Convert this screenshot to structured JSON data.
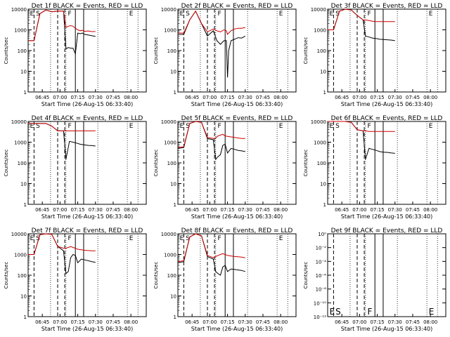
{
  "colors": {
    "events": "#000000",
    "lld": "#cc0000"
  },
  "chart_data": [
    {
      "type": "line",
      "title": "Det 1f  BLACK = Events, RED = LLD",
      "xlabel": "Start Time (26-Aug-15 06:33:40)",
      "ylabel": "Counts/sec",
      "x_ticks": [
        "06:45",
        "07:00",
        "07:15",
        "07:30",
        "07:45",
        "08:00"
      ],
      "y_scale": "log",
      "y_ticks": [
        "1",
        "10",
        "100",
        "1000",
        "10000"
      ],
      "ylim": [
        1,
        10000
      ],
      "phase_labels": [
        "E",
        "S",
        "F",
        "E"
      ],
      "series": [
        {
          "color": "events",
          "x": [
            "06:33",
            "06:38",
            "06:43",
            "06:48",
            "06:53",
            "06:58",
            "07:03",
            "07:05",
            "07:07",
            "07:09",
            "07:11",
            "07:13",
            "07:15",
            "07:17",
            "07:19",
            "07:21",
            "07:24",
            "07:27",
            "07:30"
          ],
          "y": [
            300,
            300,
            6000,
            9000,
            7500,
            8000,
            8000,
            120,
            140,
            130,
            130,
            70,
            700,
            650,
            700,
            600,
            560,
            520,
            480
          ]
        },
        {
          "color": "lld",
          "x": [
            "06:33",
            "06:38",
            "06:43",
            "06:48",
            "06:53",
            "06:58",
            "07:03",
            "07:05",
            "07:07",
            "07:09",
            "07:11",
            "07:13",
            "07:15",
            "07:17",
            "07:19",
            "07:21",
            "07:24",
            "07:27",
            "07:30"
          ],
          "y": [
            300,
            300,
            6000,
            9000,
            7500,
            8000,
            8000,
            1300,
            1500,
            1600,
            1500,
            1200,
            1000,
            900,
            950,
            850,
            880,
            820,
            830
          ]
        }
      ]
    },
    {
      "type": "line",
      "title": "Det 2f  BLACK = Events, RED = LLD",
      "xlabel": "Start Time (26-Aug-15 06:33:40)",
      "ylabel": "Counts/sec",
      "x_ticks": [
        "06:45",
        "07:00",
        "07:15",
        "07:30",
        "07:45",
        "08:00"
      ],
      "y_scale": "log",
      "y_ticks": [
        "1",
        "10",
        "100",
        "1000",
        "10000"
      ],
      "ylim": [
        1,
        10000
      ],
      "phase_labels": [
        "E",
        "S",
        "F",
        "E"
      ],
      "series": [
        {
          "color": "events",
          "x": [
            "06:33",
            "06:38",
            "06:43",
            "06:48",
            "06:53",
            "06:58",
            "07:03",
            "07:06",
            "07:09",
            "07:12",
            "07:14",
            "07:15",
            "07:16",
            "07:18",
            "07:21",
            "07:24",
            "07:27",
            "07:30"
          ],
          "y": [
            600,
            600,
            3000,
            8000,
            2000,
            500,
            900,
            300,
            200,
            300,
            300,
            5,
            100,
            300,
            350,
            420,
            400,
            500
          ]
        },
        {
          "color": "lld",
          "x": [
            "06:33",
            "06:38",
            "06:43",
            "06:48",
            "06:53",
            "06:58",
            "07:03",
            "07:06",
            "07:09",
            "07:12",
            "07:14",
            "07:15",
            "07:16",
            "07:18",
            "07:21",
            "07:24",
            "07:27",
            "07:30"
          ],
          "y": [
            700,
            700,
            3000,
            8000,
            2000,
            800,
            1100,
            900,
            800,
            1000,
            900,
            600,
            700,
            900,
            1100,
            1200,
            1200,
            1300
          ]
        }
      ]
    },
    {
      "type": "line",
      "title": "Det 3f  BLACK = Events, RED = LLD",
      "xlabel": "Start Time (26-Aug-15 06:33:40)",
      "ylabel": "Counts/sec",
      "x_ticks": [
        "06:45",
        "07:00",
        "07:15",
        "07:30",
        "07:45",
        "08:00"
      ],
      "y_scale": "log",
      "y_ticks": [
        "1",
        "10",
        "100",
        "1000",
        "10000"
      ],
      "ylim": [
        1,
        10000
      ],
      "phase_labels": [
        "E",
        "S",
        "F",
        "E"
      ],
      "series": [
        {
          "color": "events",
          "x": [
            "06:33",
            "06:38",
            "06:43",
            "06:48",
            "06:53",
            "06:58",
            "07:03",
            "07:05",
            "07:08",
            "07:11",
            "07:14",
            "07:17",
            "07:20",
            "07:24",
            "07:27",
            "07:30"
          ],
          "y": [
            1000,
            1000,
            8000,
            10000,
            9000,
            5000,
            3000,
            500,
            450,
            400,
            380,
            350,
            340,
            330,
            320,
            300
          ]
        },
        {
          "color": "lld",
          "x": [
            "06:33",
            "06:38",
            "06:43",
            "06:48",
            "06:53",
            "06:58",
            "07:03",
            "07:05",
            "07:08",
            "07:11",
            "07:14",
            "07:17",
            "07:20",
            "07:24",
            "07:27",
            "07:30"
          ],
          "y": [
            1000,
            1000,
            8000,
            10000,
            9000,
            5000,
            3000,
            3000,
            2800,
            2600,
            2500,
            2500,
            2500,
            2500,
            2500,
            2500
          ]
        }
      ]
    },
    {
      "type": "line",
      "title": "Det 4f  BLACK = Events, RED = LLD",
      "xlabel": "Start Time (26-Aug-15 06:33:40)",
      "ylabel": "Counts/sec",
      "x_ticks": [
        "06:45",
        "07:00",
        "07:15",
        "07:30",
        "07:45",
        "08:00"
      ],
      "y_scale": "log",
      "y_ticks": [
        "1",
        "10",
        "100",
        "1000",
        "10000"
      ],
      "ylim": [
        1,
        10000
      ],
      "phase_labels": [
        "E",
        "S",
        "F",
        "E"
      ],
      "series": [
        {
          "color": "events",
          "x": [
            "06:33",
            "06:38",
            "06:43",
            "06:48",
            "06:53",
            "06:58",
            "07:03",
            "07:05",
            "07:08",
            "07:11",
            "07:14",
            "07:17",
            "07:20",
            "07:24",
            "07:27",
            "07:30"
          ],
          "y": [
            8000,
            8000,
            8000,
            8000,
            6000,
            3500,
            3500,
            150,
            1100,
            1000,
            900,
            800,
            750,
            700,
            680,
            650
          ]
        },
        {
          "color": "lld",
          "x": [
            "06:33",
            "06:38",
            "06:43",
            "06:48",
            "06:53",
            "06:58",
            "07:03",
            "07:05",
            "07:08",
            "07:11",
            "07:14",
            "07:17",
            "07:20",
            "07:24",
            "07:27",
            "07:30"
          ],
          "y": [
            8000,
            8000,
            8000,
            8000,
            6000,
            3500,
            3500,
            3500,
            3500,
            3500,
            3500,
            3500,
            3500,
            3500,
            3500,
            3500
          ]
        }
      ]
    },
    {
      "type": "line",
      "title": "Det 5f  BLACK = Events, RED = LLD",
      "xlabel": "Start Time (26-Aug-15 06:33:40)",
      "ylabel": "Counts/sec",
      "x_ticks": [
        "06:45",
        "07:00",
        "07:15",
        "07:30",
        "07:45",
        "08:00"
      ],
      "y_scale": "log",
      "y_ticks": [
        "1",
        "10",
        "100",
        "1000",
        "10000"
      ],
      "ylim": [
        1,
        10000
      ],
      "phase_labels": [
        "E",
        "S",
        "F",
        "E"
      ],
      "series": [
        {
          "color": "events",
          "x": [
            "06:33",
            "06:38",
            "06:43",
            "06:48",
            "06:53",
            "06:58",
            "07:03",
            "07:05",
            "07:07",
            "07:09",
            "07:11",
            "07:13",
            "07:15",
            "07:18",
            "07:21",
            "07:24",
            "07:27",
            "07:30"
          ],
          "y": [
            500,
            550,
            8000,
            10000,
            9000,
            1500,
            1300,
            150,
            200,
            250,
            700,
            800,
            300,
            500,
            450,
            400,
            380,
            350
          ]
        },
        {
          "color": "lld",
          "x": [
            "06:33",
            "06:38",
            "06:43",
            "06:48",
            "06:53",
            "06:58",
            "07:03",
            "07:05",
            "07:07",
            "07:09",
            "07:11",
            "07:13",
            "07:15",
            "07:18",
            "07:21",
            "07:24",
            "07:27",
            "07:30"
          ],
          "y": [
            550,
            600,
            8000,
            10000,
            9000,
            1700,
            1500,
            1600,
            2000,
            2200,
            2400,
            2000,
            1900,
            1800,
            1700,
            1600,
            1500,
            1500
          ]
        }
      ]
    },
    {
      "type": "line",
      "title": "Det 6f  BLACK = Events, RED = LLD",
      "xlabel": "Start Time (26-Aug-15 06:33:40)",
      "ylabel": "Counts/sec",
      "x_ticks": [
        "06:45",
        "07:00",
        "07:15",
        "07:30",
        "07:45",
        "08:00"
      ],
      "y_scale": "log",
      "y_ticks": [
        "1",
        "10",
        "100",
        "1000",
        "10000"
      ],
      "ylim": [
        1,
        10000
      ],
      "phase_labels": [
        "E",
        "S",
        "F",
        "E"
      ],
      "series": [
        {
          "color": "events",
          "x": [
            "06:33",
            "06:38",
            "06:43",
            "06:48",
            "06:53",
            "06:58",
            "07:03",
            "07:05",
            "07:08",
            "07:11",
            "07:14",
            "07:17",
            "07:20",
            "07:24",
            "07:27",
            "07:30"
          ],
          "y": [
            10000,
            10000,
            10000,
            10000,
            9000,
            4000,
            3500,
            150,
            500,
            450,
            400,
            350,
            330,
            320,
            300,
            290
          ]
        },
        {
          "color": "lld",
          "x": [
            "06:33",
            "06:38",
            "06:43",
            "06:48",
            "06:53",
            "06:58",
            "07:03",
            "07:05",
            "07:08",
            "07:11",
            "07:14",
            "07:17",
            "07:20",
            "07:24",
            "07:27",
            "07:30"
          ],
          "y": [
            10000,
            10000,
            10000,
            10000,
            9000,
            4000,
            3500,
            3500,
            3300,
            3300,
            3300,
            3300,
            3300,
            3300,
            3300,
            3300
          ]
        }
      ]
    },
    {
      "type": "line",
      "title": "Det 7f  BLACK = Events, RED = LLD",
      "xlabel": "Start Time (26-Aug-15 06:33:40)",
      "ylabel": "Counts/sec",
      "x_ticks": [
        "06:45",
        "07:00",
        "07:15",
        "07:30",
        "07:45",
        "08:00"
      ],
      "y_scale": "log",
      "y_ticks": [
        "1",
        "10",
        "100",
        "1000",
        "10000"
      ],
      "ylim": [
        1,
        10000
      ],
      "phase_labels": [
        "E",
        "S",
        "F",
        "E"
      ],
      "series": [
        {
          "color": "events",
          "x": [
            "06:33",
            "06:38",
            "06:43",
            "06:48",
            "06:53",
            "06:58",
            "07:03",
            "07:05",
            "07:07",
            "07:09",
            "07:11",
            "07:13",
            "07:15",
            "07:18",
            "07:21",
            "07:24",
            "07:27",
            "07:30"
          ],
          "y": [
            1000,
            1000,
            9000,
            10000,
            9500,
            2500,
            1500,
            120,
            150,
            700,
            1000,
            900,
            400,
            600,
            550,
            500,
            450,
            420
          ]
        },
        {
          "color": "lld",
          "x": [
            "06:33",
            "06:38",
            "06:43",
            "06:48",
            "06:53",
            "06:58",
            "07:03",
            "07:05",
            "07:07",
            "07:09",
            "07:11",
            "07:13",
            "07:15",
            "07:18",
            "07:21",
            "07:24",
            "07:27",
            "07:30"
          ],
          "y": [
            1000,
            1000,
            9000,
            10000,
            9500,
            2500,
            2000,
            2000,
            2200,
            2400,
            2200,
            2000,
            1800,
            1700,
            1600,
            1550,
            1500,
            1500
          ]
        }
      ]
    },
    {
      "type": "line",
      "title": "Det 8f  BLACK = Events, RED = LLD",
      "xlabel": "Start Time (26-Aug-15 06:33:40)",
      "ylabel": "Counts/sec",
      "x_ticks": [
        "06:45",
        "07:00",
        "07:15",
        "07:30",
        "07:45",
        "08:00"
      ],
      "y_scale": "log",
      "y_ticks": [
        "1",
        "10",
        "100",
        "1000",
        "10000"
      ],
      "ylim": [
        1,
        10000
      ],
      "phase_labels": [
        "E",
        "S",
        "F",
        "E"
      ],
      "series": [
        {
          "color": "events",
          "x": [
            "06:33",
            "06:38",
            "06:43",
            "06:48",
            "06:53",
            "06:58",
            "07:03",
            "07:05",
            "07:07",
            "07:09",
            "07:11",
            "07:13",
            "07:15",
            "07:18",
            "07:21",
            "07:24",
            "07:27",
            "07:30"
          ],
          "y": [
            400,
            450,
            7000,
            10000,
            8000,
            800,
            600,
            150,
            120,
            100,
            250,
            300,
            150,
            200,
            190,
            180,
            170,
            150
          ]
        },
        {
          "color": "lld",
          "x": [
            "06:33",
            "06:38",
            "06:43",
            "06:48",
            "06:53",
            "06:58",
            "07:03",
            "07:05",
            "07:07",
            "07:09",
            "07:11",
            "07:13",
            "07:15",
            "07:18",
            "07:21",
            "07:24",
            "07:27",
            "07:30"
          ],
          "y": [
            450,
            500,
            7000,
            10000,
            8000,
            900,
            700,
            800,
            900,
            1000,
            1100,
            1000,
            900,
            850,
            800,
            780,
            750,
            700
          ]
        }
      ]
    },
    {
      "type": "line",
      "title": "Det 9f  BLACK = Events, RED = LLD",
      "xlabel": "Start Time (26-Aug-15 06:33:40)",
      "ylabel": "Counts/sec",
      "x_ticks": [
        "06:45",
        "07:00",
        "07:15",
        "07:30",
        "07:45",
        "08:00"
      ],
      "y_scale": "log",
      "y_ticks": [
        "10⁰",
        "10⁻²",
        "10⁻⁴",
        "10⁻⁶",
        "10⁻⁸",
        "10⁻¹⁰",
        "10⁻¹²"
      ],
      "ylim": [
        1e-12,
        1
      ],
      "y_tick_values": [
        1,
        0.01,
        0.0001,
        1e-06,
        1e-08,
        1e-10,
        1e-12
      ],
      "phase_labels": [
        "E",
        "S",
        "F",
        "E"
      ],
      "series": []
    }
  ]
}
